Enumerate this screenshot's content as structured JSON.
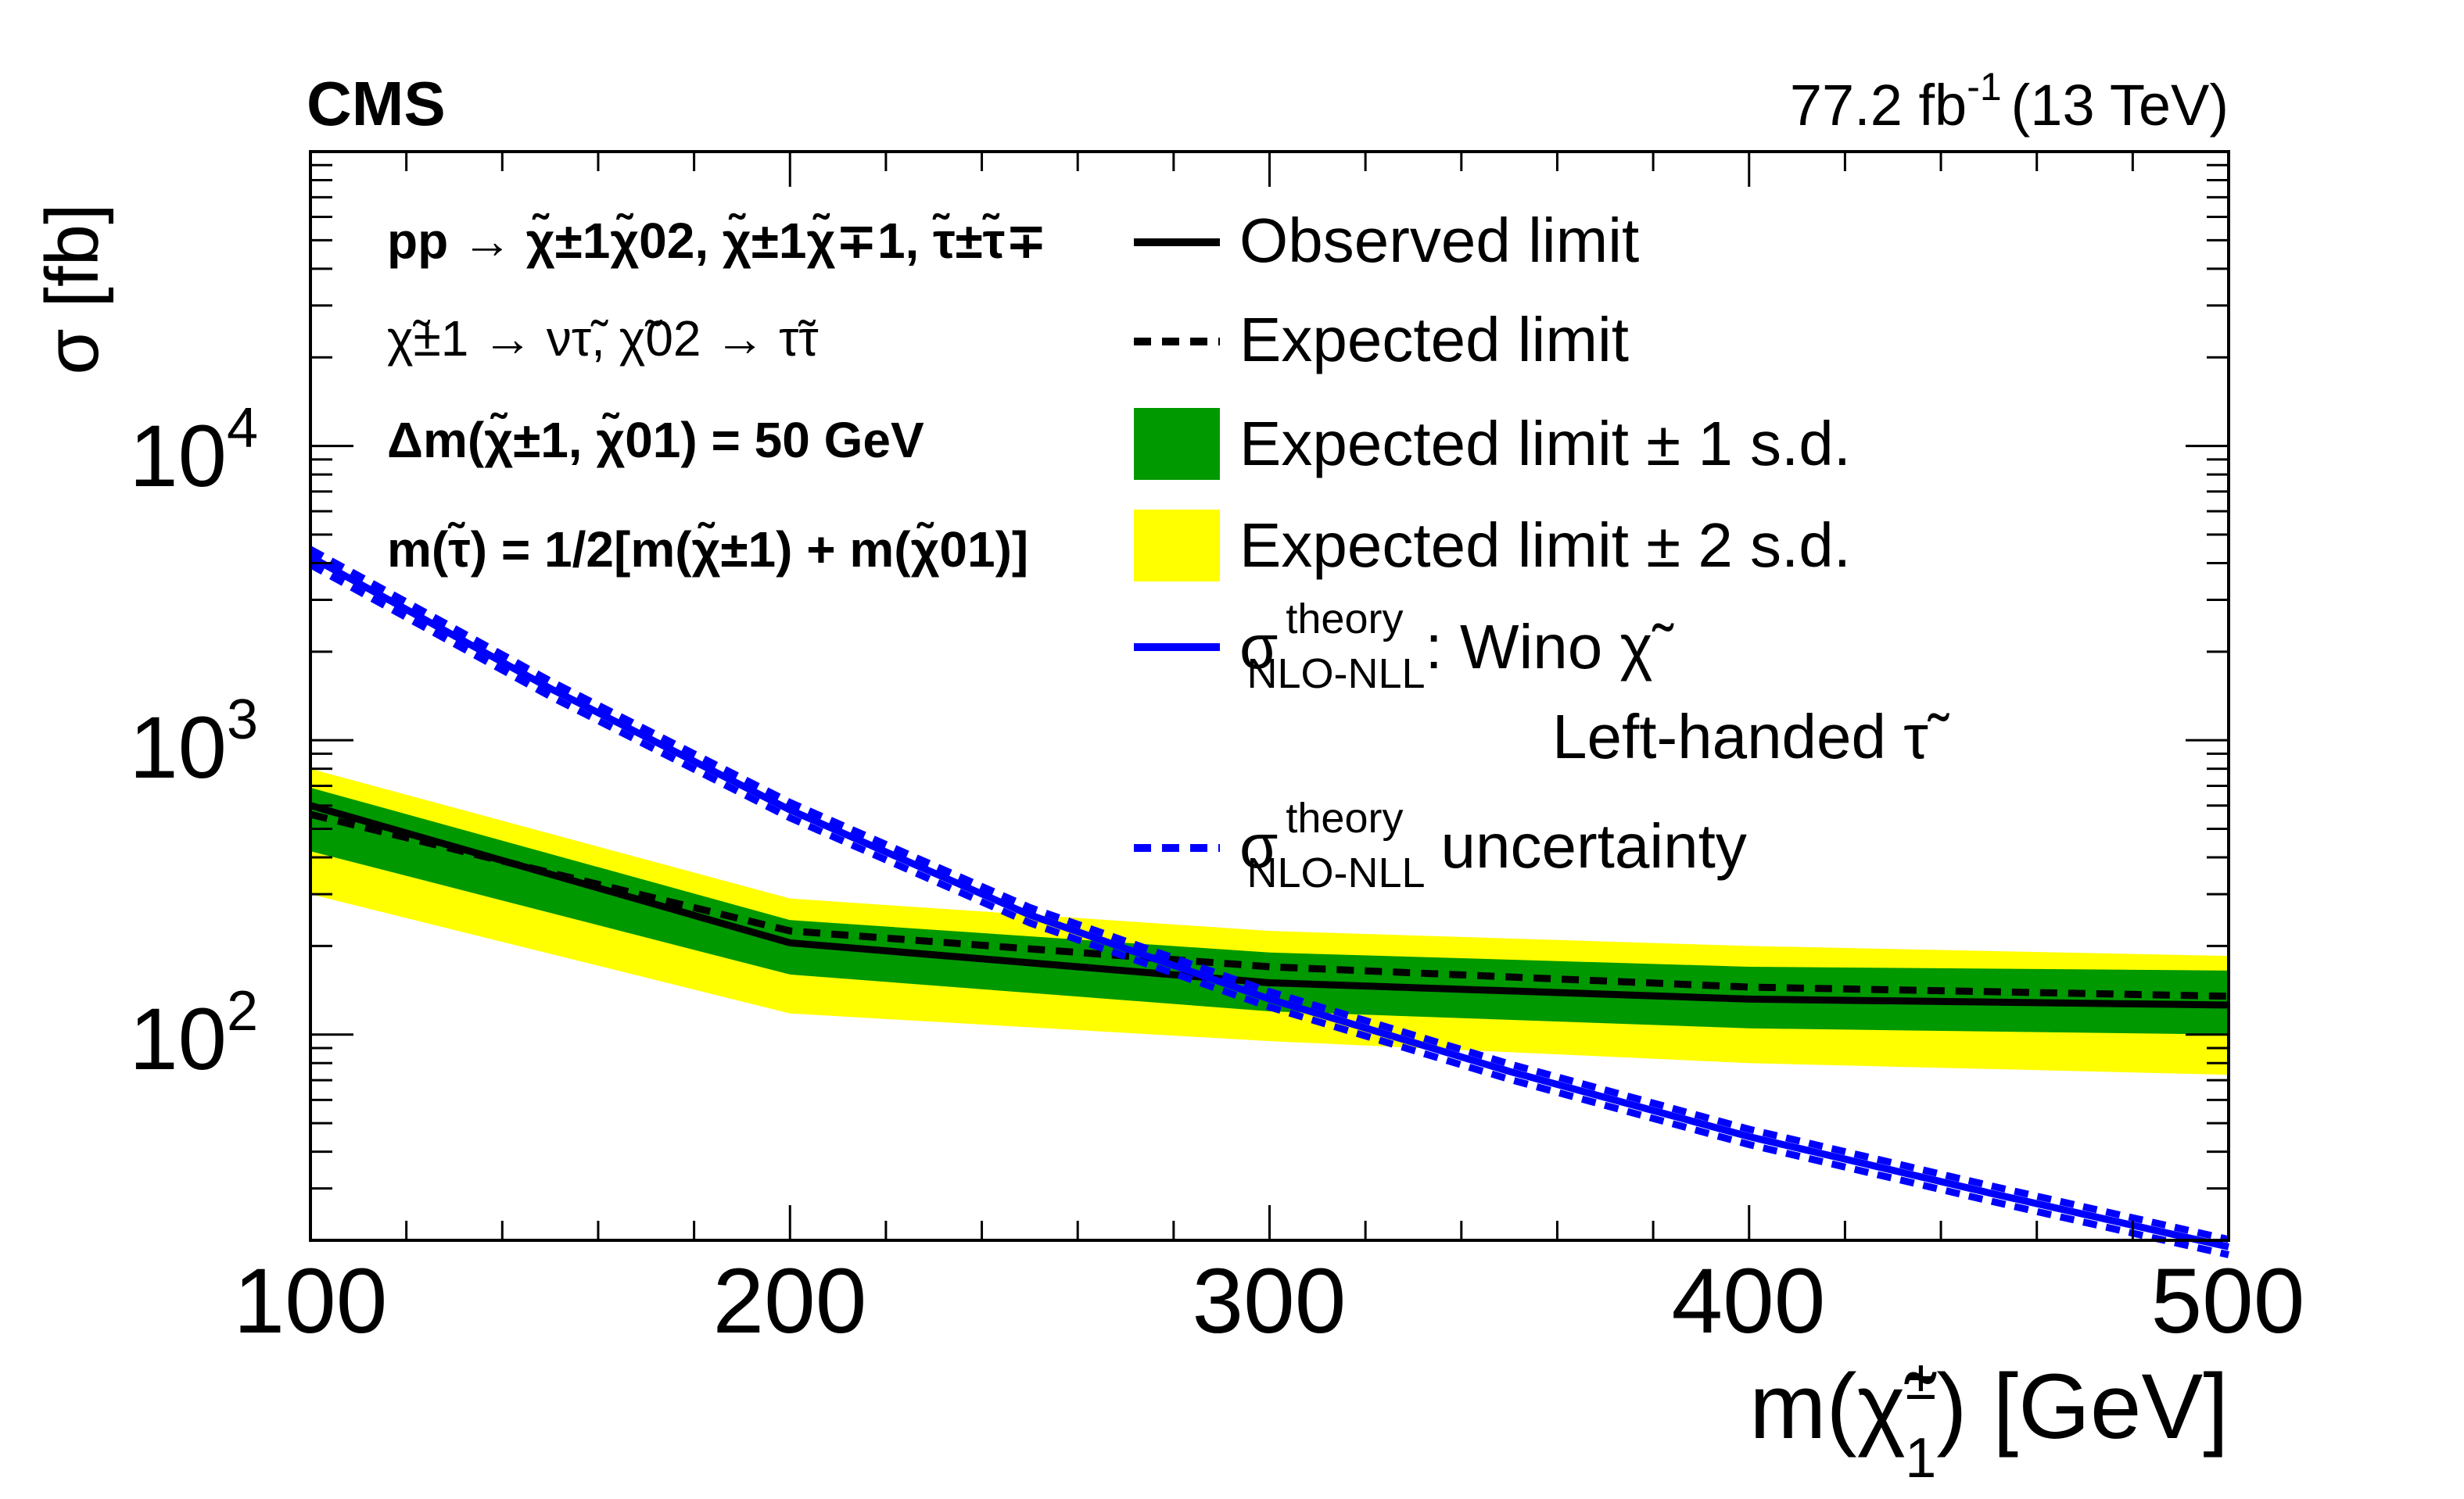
{
  "chart_data": {
    "type": "line",
    "yscale": "log",
    "experiment": "CMS",
    "lumi_label": "77.2 fb",
    "lumi_exponent": "-1",
    "energy_label": "(13 TeV)",
    "xlabel": "m(χ̃",
    "xlabel_sup": "±",
    "xlabel_sub": "1",
    "xlabel_unit": ") [GeV]",
    "ylabel": "σ [fb]",
    "xlim": [
      100,
      500
    ],
    "ylim": [
      20,
      100000
    ],
    "x_ticks": [
      100,
      200,
      300,
      400,
      500
    ],
    "x_tick_labels": [
      "100",
      "200",
      "300",
      "400",
      "500"
    ],
    "y_ticks": [
      100,
      1000,
      10000
    ],
    "y_tick_base": "10",
    "y_tick_exponents": [
      "2",
      "3",
      "4"
    ],
    "x": [
      100,
      200,
      300,
      400,
      500
    ],
    "series": [
      {
        "name": "Observed limit",
        "values": [
          600,
          205,
          150,
          132,
          126
        ]
      },
      {
        "name": "Expected limit",
        "values": [
          560,
          225,
          170,
          145,
          135
        ]
      },
      {
        "name": "Expected limit ± 1 s.d. (lower)",
        "values": [
          420,
          160,
          120,
          105,
          100
        ]
      },
      {
        "name": "Expected limit ± 1 s.d. (upper)",
        "values": [
          690,
          245,
          190,
          170,
          165
        ]
      },
      {
        "name": "Expected limit ± 2 s.d. (lower)",
        "values": [
          300,
          118,
          95,
          80,
          73
        ]
      },
      {
        "name": "Expected limit ± 2 s.d. (upper)",
        "values": [
          800,
          290,
          225,
          200,
          185
        ]
      }
    ],
    "theory": {
      "x": [
        100,
        150,
        200,
        250,
        300,
        350,
        400,
        450,
        500
      ],
      "values": [
        4200,
        1500,
        580,
        255,
        132,
        75,
        45,
        29,
        19
      ],
      "uncertainty_fraction": 0.06
    },
    "colors": {
      "observed": "#000000",
      "expected": "#000000",
      "band1": "#009900",
      "band2": "#ffff00",
      "theory": "#0000ff"
    },
    "annotations": {
      "process": "pp → χ̃±1χ̃02, χ̃±1χ̃∓1, τ̃±τ̃∓",
      "decay": "χ̃±1 → ντ̃, χ̃02 → τ̃τ",
      "delta_m": "Δm(χ̃±1, χ̃01) = 50 GeV",
      "stau_mass": "m(τ̃) = 1/2[m(χ̃±1) + m(χ̃01)]"
    },
    "legend": {
      "position": "top-right",
      "observed": "Observed limit",
      "expected": "Expected limit",
      "band1": "Expected limit ± 1 s.d.",
      "band2": "Expected limit ± 2 s.d.",
      "theory_sigma": "σ",
      "theory_sup": "theory",
      "theory_sub": "NLO-NLL",
      "theory_text": ": Wino χ̃",
      "theory_line2": "Left-handed τ̃",
      "uncertainty_text": "uncertainty"
    }
  }
}
